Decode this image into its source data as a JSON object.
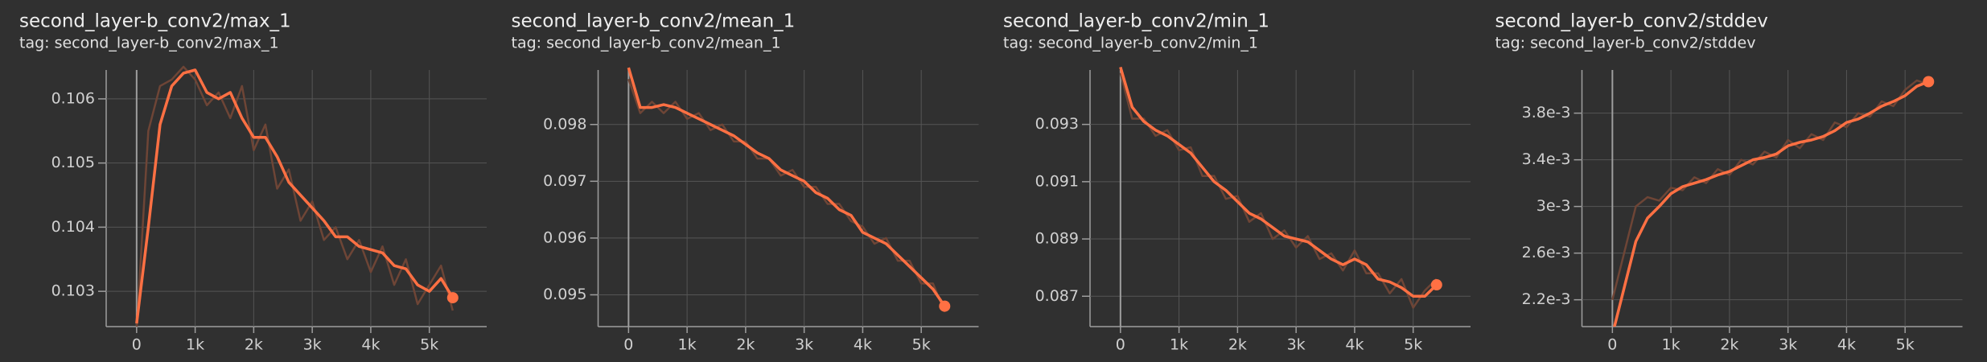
{
  "chart_data": [
    {
      "type": "line",
      "title": "second_layer-b_conv2/max_1",
      "subtitle": "tag: second_layer-b_conv2/max_1",
      "x": [
        0,
        200,
        400,
        600,
        800,
        1000,
        1200,
        1400,
        1600,
        1800,
        2000,
        2200,
        2400,
        2600,
        2800,
        3000,
        3200,
        3400,
        3600,
        3800,
        4000,
        4200,
        4400,
        4600,
        4800,
        5000,
        5200,
        5400
      ],
      "series": [
        {
          "color": "#6e4536",
          "values": [
            0.1024,
            0.1055,
            0.1062,
            0.1063,
            0.1065,
            0.1063,
            0.1059,
            0.1061,
            0.1057,
            0.1062,
            0.1052,
            0.1056,
            0.1046,
            0.1049,
            0.1041,
            0.1044,
            0.1038,
            0.104,
            0.1035,
            0.1038,
            0.1033,
            0.1037,
            0.1031,
            0.1035,
            0.1028,
            0.1031,
            0.1034,
            0.1027
          ]
        },
        {
          "color": "#ff7043",
          "values": [
            0.1025,
            0.104,
            0.1056,
            0.1062,
            0.1064,
            0.10645,
            0.1061,
            0.106,
            0.1061,
            0.1057,
            0.1054,
            0.1054,
            0.1051,
            0.1047,
            0.1045,
            0.1043,
            0.1041,
            0.10385,
            0.10385,
            0.1037,
            0.10365,
            0.1036,
            0.1034,
            0.10335,
            0.1031,
            0.103,
            0.1032,
            0.1029
          ]
        }
      ],
      "xlim": [
        -520,
        5980
      ],
      "ylim": [
        0.10245,
        0.10645
      ],
      "xticks": [
        0,
        {
          "value": 1000,
          "label": "1k"
        },
        {
          "value": 2000,
          "label": "2k"
        },
        {
          "value": 3000,
          "label": "3k"
        },
        {
          "value": 4000,
          "label": "4k"
        },
        {
          "value": 5000,
          "label": "5k"
        }
      ],
      "yticks": [
        0.103,
        0.104,
        0.105,
        0.106
      ],
      "grid": true
    },
    {
      "type": "line",
      "title": "second_layer-b_conv2/mean_1",
      "subtitle": "tag: second_layer-b_conv2/mean_1",
      "x": [
        0,
        200,
        400,
        600,
        800,
        1000,
        1200,
        1400,
        1600,
        1800,
        2000,
        2200,
        2400,
        2600,
        2800,
        3000,
        3200,
        3400,
        3600,
        3800,
        4000,
        4200,
        4400,
        4600,
        4800,
        5000,
        5200,
        5400
      ],
      "series": [
        {
          "color": "#6e4536",
          "values": [
            0.0988,
            0.0982,
            0.0984,
            0.0982,
            0.0984,
            0.0981,
            0.0982,
            0.0979,
            0.098,
            0.0977,
            0.0977,
            0.0974,
            0.0974,
            0.0971,
            0.0972,
            0.0969,
            0.0969,
            0.0966,
            0.0966,
            0.0963,
            0.0962,
            0.0959,
            0.096,
            0.0956,
            0.0956,
            0.0952,
            0.0952,
            0.0947
          ]
        },
        {
          "color": "#ff7043",
          "values": [
            0.099,
            0.0983,
            0.0983,
            0.09835,
            0.0983,
            0.0982,
            0.0981,
            0.098,
            0.0979,
            0.0978,
            0.09765,
            0.0975,
            0.0974,
            0.0972,
            0.0971,
            0.097,
            0.0968,
            0.0967,
            0.0965,
            0.0964,
            0.0961,
            0.096,
            0.0959,
            0.0957,
            0.0955,
            0.0953,
            0.0951,
            0.0948
          ]
        }
      ],
      "xlim": [
        -520,
        5980
      ],
      "ylim": [
        0.09444,
        0.09896
      ],
      "xticks": [
        0,
        {
          "value": 1000,
          "label": "1k"
        },
        {
          "value": 2000,
          "label": "2k"
        },
        {
          "value": 3000,
          "label": "3k"
        },
        {
          "value": 4000,
          "label": "4k"
        },
        {
          "value": 5000,
          "label": "5k"
        }
      ],
      "yticks": [
        0.095,
        0.096,
        0.097,
        0.098
      ],
      "grid": true
    },
    {
      "type": "line",
      "title": "second_layer-b_conv2/min_1",
      "subtitle": "tag: second_layer-b_conv2/min_1",
      "x": [
        0,
        200,
        400,
        600,
        800,
        1000,
        1200,
        1400,
        1600,
        1800,
        2000,
        2200,
        2400,
        2600,
        2800,
        3000,
        3200,
        3400,
        3600,
        3800,
        4000,
        4200,
        4400,
        4600,
        4800,
        5000,
        5200,
        5400
      ],
      "series": [
        {
          "color": "#6e4536",
          "values": [
            0.0948,
            0.0932,
            0.0932,
            0.0926,
            0.0928,
            0.0921,
            0.0922,
            0.0912,
            0.0912,
            0.0904,
            0.0905,
            0.0896,
            0.0899,
            0.089,
            0.0893,
            0.0887,
            0.0891,
            0.0883,
            0.0885,
            0.0879,
            0.0886,
            0.0878,
            0.0878,
            0.0871,
            0.0876,
            0.0866,
            0.0872,
            0.0876
          ]
        },
        {
          "color": "#ff7043",
          "values": [
            0.095,
            0.0936,
            0.0931,
            0.0928,
            0.0926,
            0.0923,
            0.092,
            0.0915,
            0.091,
            0.0907,
            0.0903,
            0.0899,
            0.0897,
            0.0894,
            0.0891,
            0.089,
            0.0889,
            0.0886,
            0.0883,
            0.0881,
            0.0883,
            0.0881,
            0.0876,
            0.0875,
            0.0873,
            0.087,
            0.087,
            0.0874
          ]
        }
      ],
      "xlim": [
        -520,
        5980
      ],
      "ylim": [
        0.08594,
        0.0949
      ],
      "xticks": [
        0,
        {
          "value": 1000,
          "label": "1k"
        },
        {
          "value": 2000,
          "label": "2k"
        },
        {
          "value": 3000,
          "label": "3k"
        },
        {
          "value": 4000,
          "label": "4k"
        },
        {
          "value": 5000,
          "label": "5k"
        }
      ],
      "yticks": [
        0.087,
        0.089,
        0.091,
        0.093
      ],
      "grid": true
    },
    {
      "type": "line",
      "title": "second_layer-b_conv2/stddev",
      "subtitle": "tag: second_layer-b_conv2/stddev",
      "x": [
        0,
        200,
        400,
        600,
        800,
        1000,
        1200,
        1400,
        1600,
        1800,
        2000,
        2200,
        2400,
        2600,
        2800,
        3000,
        3200,
        3400,
        3600,
        3800,
        4000,
        4200,
        4400,
        4600,
        4800,
        5000,
        5200,
        5400
      ],
      "series": [
        {
          "color": "#6e4536",
          "values": [
            0.0022,
            0.0026,
            0.003,
            0.00308,
            0.00305,
            0.00316,
            0.00314,
            0.00325,
            0.0032,
            0.00332,
            0.00327,
            0.0034,
            0.00336,
            0.00347,
            0.00342,
            0.00357,
            0.0035,
            0.00362,
            0.00357,
            0.00372,
            0.00368,
            0.0038,
            0.00377,
            0.0039,
            0.00386,
            0.004,
            0.00408,
            0.00405
          ]
        },
        {
          "color": "#ff7043",
          "values": [
            0.0019,
            0.0023,
            0.0027,
            0.0029,
            0.003,
            0.00311,
            0.00317,
            0.0032,
            0.00323,
            0.00327,
            0.0033,
            0.00335,
            0.0034,
            0.00342,
            0.00345,
            0.00352,
            0.00355,
            0.00357,
            0.0036,
            0.00365,
            0.00372,
            0.00375,
            0.0038,
            0.00386,
            0.0039,
            0.00395,
            0.00403,
            0.00407
          ]
        }
      ],
      "xlim": [
        -520,
        5980
      ],
      "ylim": [
        0.00197,
        0.00417
      ],
      "xticks": [
        0,
        {
          "value": 1000,
          "label": "1k"
        },
        {
          "value": 2000,
          "label": "2k"
        },
        {
          "value": 3000,
          "label": "3k"
        },
        {
          "value": 4000,
          "label": "4k"
        },
        {
          "value": 5000,
          "label": "5k"
        }
      ],
      "yticks": [
        {
          "value": 0.0022,
          "label": "2.2e-3"
        },
        {
          "value": 0.0026,
          "label": "2.6e-3"
        },
        {
          "value": 0.003,
          "label": "3e-3"
        },
        {
          "value": 0.0034,
          "label": "3.4e-3"
        },
        {
          "value": 0.0038,
          "label": "3.8e-3"
        }
      ],
      "grid": true
    }
  ]
}
